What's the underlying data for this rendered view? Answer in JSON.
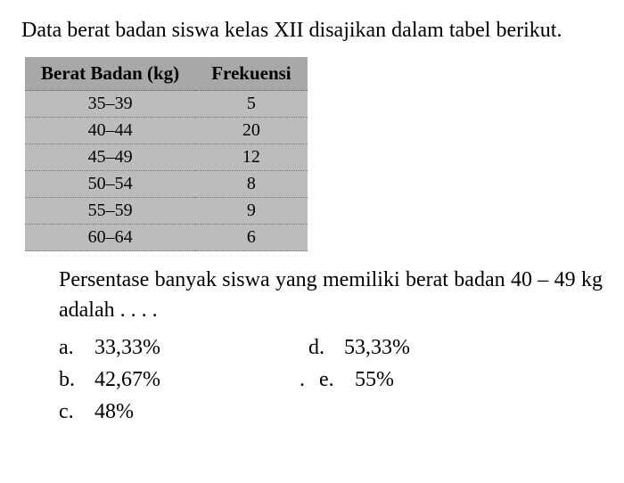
{
  "intro": "Data berat badan siswa kelas XII disajikan dalam tabel berikut.",
  "table": {
    "type": "table",
    "background_header": "#a8a8a8",
    "background_cell": "#bcbcbc",
    "border_color": "#777777",
    "font_size_header": 21,
    "font_size_cell": 20,
    "columns": [
      "Berat Badan (kg)",
      "Frekuensi"
    ],
    "rows": [
      [
        "35–39",
        "5"
      ],
      [
        "40–44",
        "20"
      ],
      [
        "45–49",
        "12"
      ],
      [
        "50–54",
        "8"
      ],
      [
        "55–59",
        "9"
      ],
      [
        "60–64",
        "6"
      ]
    ]
  },
  "question": "Persentase banyak siswa yang memiliki berat badan 40 – 49 kg adalah . . . .",
  "options": {
    "a": {
      "letter": "a.",
      "value": "33,33%"
    },
    "b": {
      "letter": "b.",
      "value": "42,67%"
    },
    "c": {
      "letter": "c.",
      "value": "48%"
    },
    "d": {
      "letter": "d.",
      "value": "53,33%"
    },
    "e": {
      "letter": "e.",
      "value": "55%"
    }
  },
  "colors": {
    "background": "#ffffff",
    "text": "#000000"
  },
  "typography": {
    "body_fontsize": 24,
    "font_family": "Times New Roman"
  }
}
